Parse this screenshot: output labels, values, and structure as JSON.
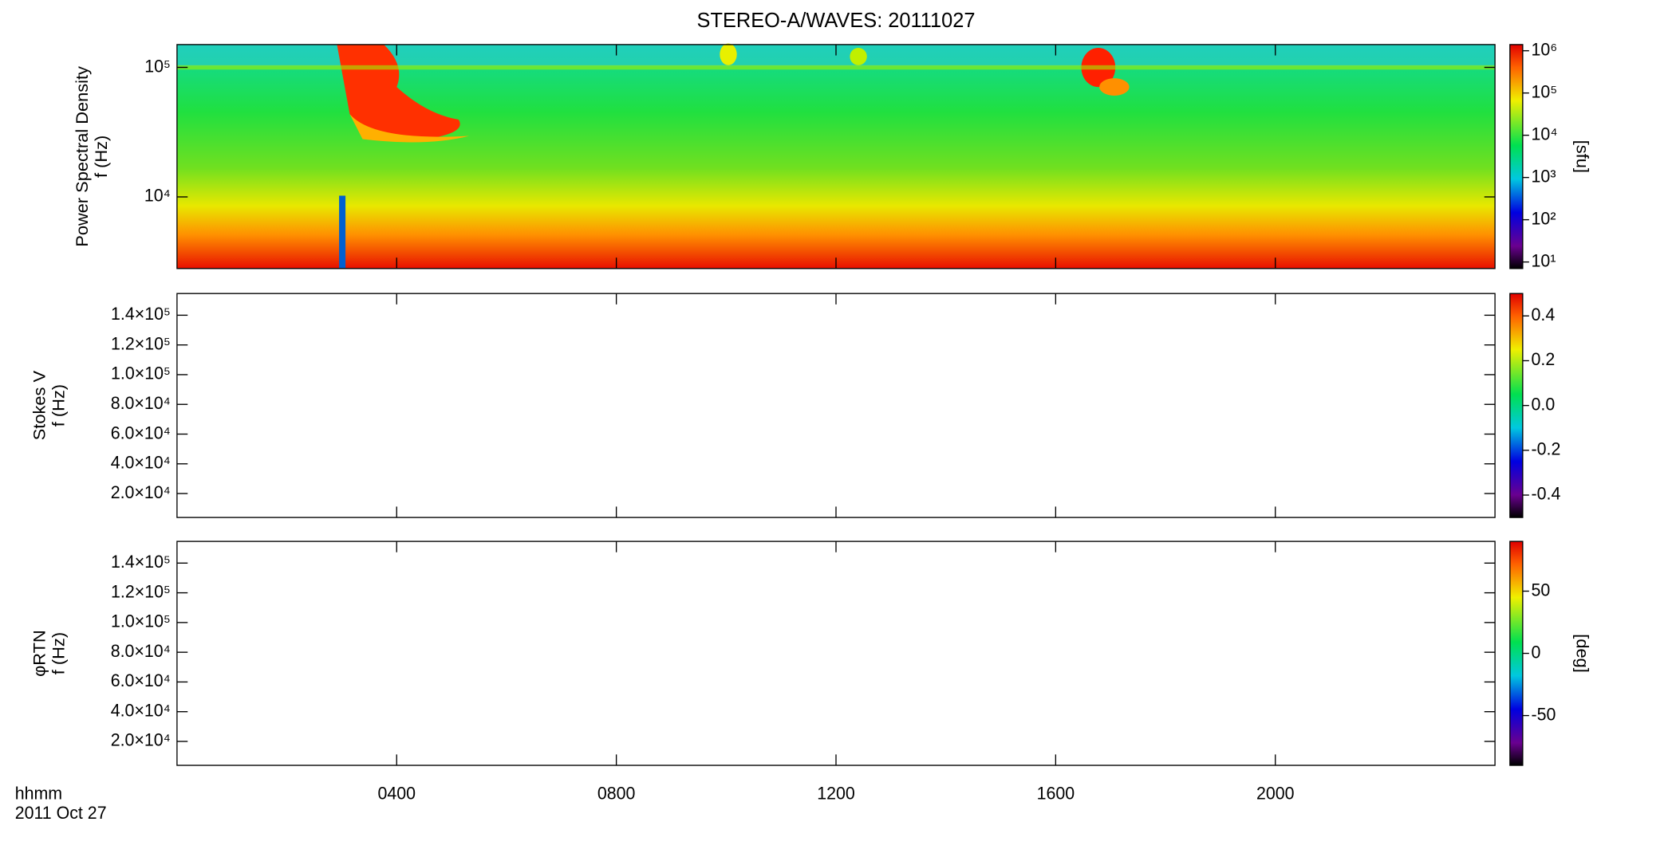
{
  "title": "STEREO-A/WAVES: 20111027",
  "time_label": "hhmm",
  "date_label": "2011 Oct 27",
  "chart_data": [
    {
      "type": "heatmap",
      "ylabel": [
        "Power Spectral Density",
        "f (Hz)"
      ],
      "xlim": [
        0,
        24
      ],
      "xticks": [
        {
          "value": 4,
          "label": "0400"
        },
        {
          "value": 8,
          "label": "0800"
        },
        {
          "value": 12,
          "label": "1200"
        },
        {
          "value": 16,
          "label": "1600"
        },
        {
          "value": 20,
          "label": "2000"
        }
      ],
      "ylog": true,
      "ylim": [
        2800,
        150000
      ],
      "yticks": [
        {
          "value": 10000,
          "label": "10⁴"
        },
        {
          "value": 100000,
          "label": "10⁵"
        }
      ],
      "colorbar": {
        "label": "[sfu]",
        "log": true,
        "lim": [
          7,
          1400000
        ],
        "ticks": [
          {
            "value": 10,
            "label": "10¹"
          },
          {
            "value": 100,
            "label": "10²"
          },
          {
            "value": 1000,
            "label": "10³"
          },
          {
            "value": 10000,
            "label": "10⁴"
          },
          {
            "value": 100000,
            "label": "10⁵"
          },
          {
            "value": 1000000,
            "label": "10⁶"
          }
        ]
      }
    },
    {
      "type": "heatmap",
      "ylabel": [
        "Stokes V",
        "f (Hz)"
      ],
      "xlim": [
        0,
        24
      ],
      "xticks": [
        {
          "value": 4,
          "label": "0400"
        },
        {
          "value": 8,
          "label": "0800"
        },
        {
          "value": 12,
          "label": "1200"
        },
        {
          "value": 16,
          "label": "1600"
        },
        {
          "value": 20,
          "label": "2000"
        }
      ],
      "ylog": false,
      "ylim": [
        3900,
        154600
      ],
      "yticks": [
        {
          "value": 20000,
          "label": "2.0×10⁴"
        },
        {
          "value": 40000,
          "label": "4.0×10⁴"
        },
        {
          "value": 60000,
          "label": "6.0×10⁴"
        },
        {
          "value": 80000,
          "label": "8.0×10⁴"
        },
        {
          "value": 100000,
          "label": "1.0×10⁵"
        },
        {
          "value": 120000,
          "label": "1.2×10⁵"
        },
        {
          "value": 140000,
          "label": "1.4×10⁵"
        }
      ],
      "colorbar": {
        "log": false,
        "lim": [
          -0.5,
          0.5
        ],
        "ticks": [
          -0.4,
          -0.2,
          {
            "value": 0,
            "label": "0.0"
          },
          0.2,
          0.4
        ]
      }
    },
    {
      "type": "heatmap",
      "ylabel": [
        "φRTN",
        "f (Hz)"
      ],
      "xlim": [
        0,
        24
      ],
      "xticks": [
        {
          "value": 4,
          "label": "0400"
        },
        {
          "value": 8,
          "label": "0800"
        },
        {
          "value": 12,
          "label": "1200"
        },
        {
          "value": 16,
          "label": "1600"
        },
        {
          "value": 20,
          "label": "2000"
        }
      ],
      "ylog": false,
      "ylim": [
        3900,
        154600
      ],
      "yticks": [
        {
          "value": 20000,
          "label": "2.0×10⁴"
        },
        {
          "value": 40000,
          "label": "4.0×10⁴"
        },
        {
          "value": 60000,
          "label": "6.0×10⁴"
        },
        {
          "value": 80000,
          "label": "8.0×10⁴"
        },
        {
          "value": 100000,
          "label": "1.0×10⁵"
        },
        {
          "value": 120000,
          "label": "1.2×10⁵"
        },
        {
          "value": 140000,
          "label": "1.4×10⁵"
        }
      ],
      "colorbar": {
        "label": "[deg]",
        "log": false,
        "lim": [
          -90,
          90
        ],
        "ticks": [
          -50,
          0,
          50
        ]
      }
    }
  ]
}
